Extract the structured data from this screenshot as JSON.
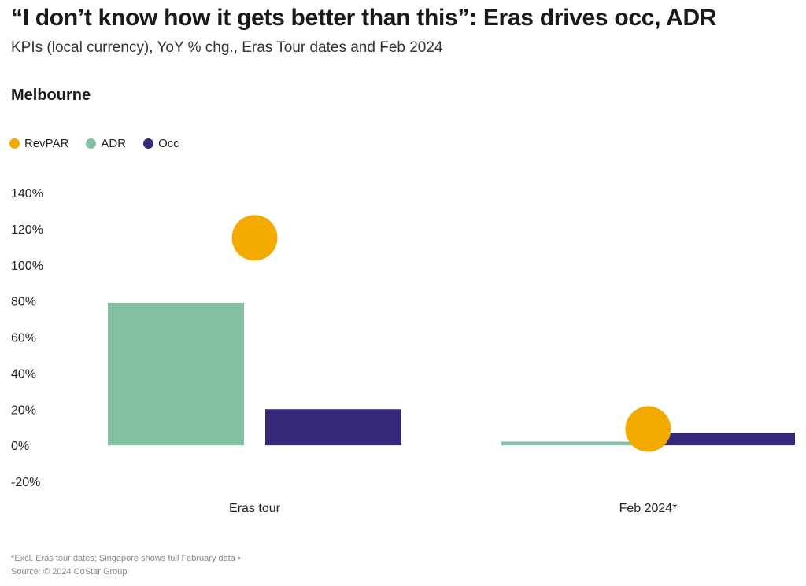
{
  "header": {
    "title": "“I don’t know how it gets better than this”: Eras drives occ, ADR",
    "subtitle": "KPIs (local currency), YoY % chg., Eras Tour dates and Feb 2024",
    "panel_title": "Melbourne"
  },
  "footer": {
    "note": "*Excl. Eras tour dates; Singapore shows full February data •",
    "source": "Source: © 2024 CoStar Group"
  },
  "colors": {
    "revpar": "#F2A900",
    "adr": "#82BFA3",
    "occ": "#35277A"
  },
  "chart_data": {
    "type": "bar",
    "title": "Melbourne",
    "categories": [
      "Eras tour",
      "Feb 2024*"
    ],
    "series": [
      {
        "name": "ADR",
        "kind": "bar",
        "values": [
          79,
          2
        ]
      },
      {
        "name": "Occ",
        "kind": "bar",
        "values": [
          20,
          7
        ]
      },
      {
        "name": "RevPAR",
        "kind": "point",
        "values": [
          115,
          9
        ]
      }
    ],
    "legend": [
      "RevPAR",
      "ADR",
      "Occ"
    ],
    "legend_position": "top-left",
    "ylim": [
      -20,
      140
    ],
    "yticks": [
      140,
      120,
      100,
      80,
      60,
      40,
      20,
      0,
      -20
    ],
    "ytick_labels": [
      "140%",
      "120%",
      "100%",
      "80%",
      "60%",
      "40%",
      "20%",
      "0%",
      "-20%"
    ],
    "grid": false
  }
}
